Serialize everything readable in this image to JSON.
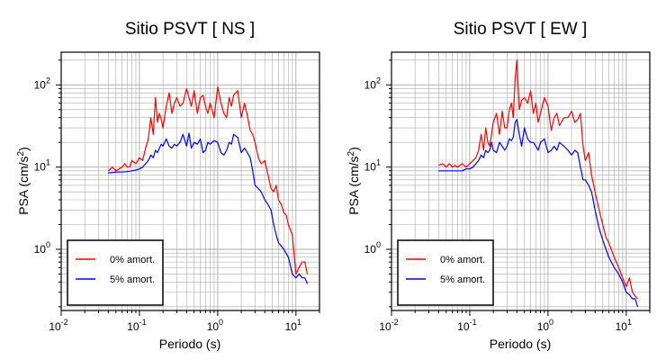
{
  "chart_data": [
    {
      "type": "line",
      "title": "Sitio PSVT [ NS ]",
      "xlabel": "Periodo (s)",
      "ylabel": "PSA (cm/s",
      "ylabel_sup": "2",
      "ylabel_close": ")",
      "x_scale": "log",
      "y_scale": "log",
      "xlim": [
        0.01,
        20
      ],
      "ylim": [
        0.18,
        250
      ],
      "grid": true,
      "legend_position": "bottom-left",
      "x_ticks": [
        {
          "base": "10",
          "exp": "-2",
          "v": 0.01
        },
        {
          "base": "10",
          "exp": "-1",
          "v": 0.1
        },
        {
          "base": "10",
          "exp": "0",
          "v": 1
        },
        {
          "base": "10",
          "exp": "1",
          "v": 10
        }
      ],
      "y_ticks": [
        {
          "base": "10",
          "exp": "0",
          "v": 1
        },
        {
          "base": "10",
          "exp": "1",
          "v": 10
        },
        {
          "base": "10",
          "exp": "2",
          "v": 100
        }
      ],
      "series": [
        {
          "name": "0% amort.",
          "color": "#ff0000",
          "x": [
            0.04,
            0.045,
            0.05,
            0.055,
            0.06,
            0.065,
            0.07,
            0.075,
            0.08,
            0.09,
            0.1,
            0.11,
            0.12,
            0.13,
            0.14,
            0.15,
            0.16,
            0.17,
            0.18,
            0.19,
            0.2,
            0.22,
            0.24,
            0.26,
            0.28,
            0.3,
            0.33,
            0.36,
            0.4,
            0.43,
            0.46,
            0.5,
            0.55,
            0.6,
            0.65,
            0.7,
            0.75,
            0.8,
            0.9,
            1.0,
            1.1,
            1.2,
            1.3,
            1.4,
            1.5,
            1.6,
            1.8,
            2.0,
            2.2,
            2.4,
            2.6,
            2.8,
            3.0,
            3.3,
            3.6,
            4.0,
            4.4,
            4.8,
            5.2,
            5.6,
            6.0,
            6.5,
            7.0,
            7.5,
            8.0,
            9.0,
            10.0,
            11.0,
            12.0,
            13.0,
            14.0
          ],
          "y": [
            9,
            10,
            9,
            9.5,
            10,
            11,
            10,
            10,
            12,
            11,
            13,
            12,
            17,
            22,
            40,
            25,
            70,
            35,
            45,
            38,
            30,
            55,
            80,
            45,
            60,
            70,
            55,
            60,
            90,
            70,
            55,
            85,
            45,
            70,
            75,
            55,
            45,
            60,
            40,
            95,
            60,
            45,
            40,
            70,
            55,
            75,
            85,
            40,
            60,
            42,
            28,
            25,
            20,
            13,
            11,
            12,
            8,
            5.5,
            5,
            6,
            4,
            3.5,
            2.8,
            2.6,
            2,
            1.5,
            0.5,
            0.6,
            0.7,
            0.7,
            0.5
          ]
        },
        {
          "name": "5% amort.",
          "color": "#0000ff",
          "x": [
            0.04,
            0.05,
            0.06,
            0.07,
            0.08,
            0.09,
            0.1,
            0.11,
            0.12,
            0.13,
            0.14,
            0.15,
            0.16,
            0.17,
            0.18,
            0.19,
            0.2,
            0.22,
            0.24,
            0.26,
            0.28,
            0.3,
            0.33,
            0.36,
            0.4,
            0.43,
            0.46,
            0.5,
            0.55,
            0.6,
            0.65,
            0.7,
            0.75,
            0.8,
            0.9,
            1.0,
            1.1,
            1.2,
            1.3,
            1.4,
            1.5,
            1.6,
            1.8,
            2.0,
            2.2,
            2.4,
            2.6,
            2.8,
            3.0,
            3.3,
            3.6,
            4.0,
            4.4,
            4.8,
            5.2,
            5.6,
            6.0,
            7.0,
            8.0,
            9.0,
            10.0,
            11.0,
            12.0,
            13.0,
            14.0
          ],
          "y": [
            8.5,
            8.7,
            8.7,
            8.8,
            9,
            9.2,
            9.5,
            10,
            11,
            12,
            14,
            13,
            16,
            15,
            17,
            19,
            18,
            22,
            18,
            17,
            19,
            18,
            20,
            25,
            18,
            26,
            17,
            20,
            19,
            22,
            15,
            16,
            20,
            19,
            21,
            20,
            15,
            14,
            16,
            20,
            19,
            25,
            23,
            15,
            17,
            15,
            13,
            9,
            6,
            5.5,
            5,
            4,
            3.5,
            3,
            2,
            1.5,
            1.2,
            1,
            0.8,
            0.5,
            0.45,
            0.5,
            0.45,
            0.45,
            0.38
          ]
        }
      ]
    },
    {
      "type": "line",
      "title": "Sitio PSVT [ EW ]",
      "xlabel": "Periodo (s)",
      "ylabel": "PSA (cm/s",
      "ylabel_sup": "2",
      "ylabel_close": ")",
      "x_scale": "log",
      "y_scale": "log",
      "xlim": [
        0.01,
        20
      ],
      "ylim": [
        0.18,
        250
      ],
      "grid": true,
      "legend_position": "bottom-left",
      "x_ticks": [
        {
          "base": "10",
          "exp": "-2",
          "v": 0.01
        },
        {
          "base": "10",
          "exp": "-1",
          "v": 0.1
        },
        {
          "base": "10",
          "exp": "0",
          "v": 1
        },
        {
          "base": "10",
          "exp": "1",
          "v": 10
        }
      ],
      "y_ticks": [
        {
          "base": "10",
          "exp": "0",
          "v": 1
        },
        {
          "base": "10",
          "exp": "1",
          "v": 10
        },
        {
          "base": "10",
          "exp": "2",
          "v": 100
        }
      ],
      "series": [
        {
          "name": "0% amort.",
          "color": "#ff0000",
          "x": [
            0.04,
            0.045,
            0.05,
            0.055,
            0.06,
            0.065,
            0.07,
            0.08,
            0.09,
            0.1,
            0.11,
            0.12,
            0.13,
            0.14,
            0.15,
            0.16,
            0.17,
            0.18,
            0.19,
            0.2,
            0.22,
            0.24,
            0.26,
            0.28,
            0.3,
            0.32,
            0.34,
            0.36,
            0.38,
            0.4,
            0.43,
            0.46,
            0.5,
            0.55,
            0.6,
            0.65,
            0.7,
            0.75,
            0.8,
            0.9,
            1.0,
            1.1,
            1.2,
            1.3,
            1.4,
            1.6,
            1.8,
            2.0,
            2.2,
            2.4,
            2.6,
            2.8,
            3.0,
            3.3,
            3.6,
            4.0,
            4.5,
            5.0,
            5.5,
            6.0,
            7.0,
            8.0,
            9.0,
            10.0,
            11.0,
            12.0,
            13.0,
            14.0
          ],
          "y": [
            10.5,
            11,
            10,
            11,
            10,
            10.5,
            10,
            11,
            10,
            11,
            12,
            13,
            16,
            25,
            16,
            30,
            20,
            18,
            25,
            35,
            45,
            25,
            48,
            30,
            30,
            50,
            60,
            40,
            120,
            200,
            50,
            65,
            70,
            60,
            85,
            45,
            60,
            35,
            45,
            70,
            55,
            28,
            40,
            45,
            32,
            40,
            40,
            48,
            35,
            38,
            45,
            18,
            12,
            15,
            8,
            5,
            3,
            2,
            1.4,
            1.2,
            0.8,
            0.6,
            0.45,
            0.35,
            0.45,
            0.3,
            0.27,
            0.25
          ]
        },
        {
          "name": "5% amort.",
          "color": "#0000ff",
          "x": [
            0.04,
            0.05,
            0.06,
            0.07,
            0.08,
            0.09,
            0.1,
            0.11,
            0.12,
            0.13,
            0.14,
            0.15,
            0.16,
            0.17,
            0.18,
            0.19,
            0.2,
            0.22,
            0.24,
            0.26,
            0.28,
            0.3,
            0.32,
            0.34,
            0.36,
            0.38,
            0.4,
            0.43,
            0.46,
            0.5,
            0.55,
            0.6,
            0.65,
            0.7,
            0.75,
            0.8,
            0.9,
            1.0,
            1.1,
            1.2,
            1.3,
            1.4,
            1.6,
            1.8,
            2.0,
            2.2,
            2.4,
            2.6,
            2.8,
            3.0,
            3.3,
            3.6,
            4.0,
            4.5,
            5.0,
            5.5,
            6.0,
            7.0,
            8.0,
            9.0,
            10.0,
            11.0,
            12.0,
            13.0,
            14.0
          ],
          "y": [
            9,
            9,
            9,
            9,
            9,
            9.5,
            9.5,
            10,
            11,
            12,
            14,
            13,
            16,
            15,
            16,
            20,
            16,
            15,
            20,
            18,
            16,
            18,
            22,
            21,
            23,
            35,
            38,
            25,
            18,
            30,
            22,
            20,
            20,
            18,
            16,
            20,
            22,
            15,
            16,
            18,
            16,
            20,
            18,
            16,
            14,
            16,
            15,
            10,
            7,
            7,
            6,
            5,
            3,
            1.8,
            1.3,
            1,
            0.8,
            0.6,
            0.5,
            0.4,
            0.3,
            0.28,
            0.25,
            0.25,
            0.2
          ]
        }
      ]
    }
  ]
}
